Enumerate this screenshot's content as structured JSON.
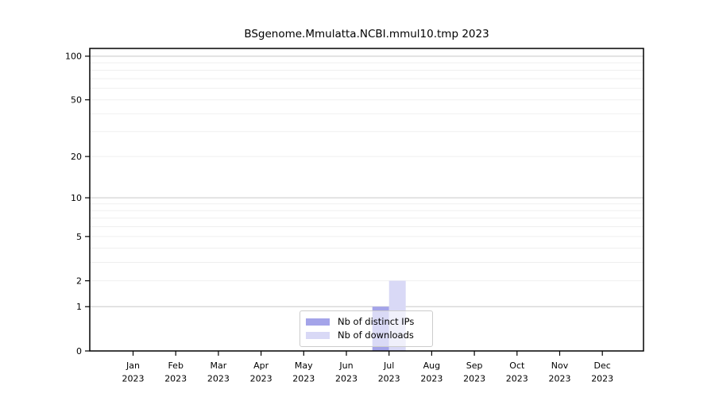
{
  "chart_data": {
    "type": "bar",
    "title": "BSgenome.Mmulatta.NCBI.mmul10.tmp 2023",
    "x": {
      "categories": [
        "Jan",
        "Feb",
        "Mar",
        "Apr",
        "May",
        "Jun",
        "Jul",
        "Aug",
        "Sep",
        "Oct",
        "Nov",
        "Dec"
      ],
      "year_label": "2023"
    },
    "y": {
      "scale": "log10(1+x)",
      "ticks": [
        0,
        1,
        2,
        5,
        10,
        20,
        50,
        100
      ],
      "max": 113,
      "major_gridlines": [
        1,
        10,
        100
      ],
      "minor_gridlines": [
        2,
        3,
        4,
        5,
        6,
        7,
        8,
        9,
        20,
        30,
        40,
        50,
        60,
        70,
        80,
        90
      ]
    },
    "series": [
      {
        "name": "Nb of distinct IPs",
        "color": "#a4a4e9",
        "values": [
          0,
          0,
          0,
          0,
          0,
          0,
          1,
          0,
          0,
          0,
          0,
          0
        ]
      },
      {
        "name": "Nb of downloads",
        "color": "#d9d9f6",
        "values": [
          0,
          0,
          0,
          0,
          0,
          0,
          2,
          0,
          0,
          0,
          0,
          0
        ]
      }
    ],
    "legend": {
      "position": "bottom-center-inside"
    },
    "grid": true,
    "colors": {
      "frame": "#000000",
      "text": "#000000",
      "gridline_major": "#d3d3d3",
      "gridline_minor": "#efefef",
      "background": "#ffffff"
    }
  }
}
